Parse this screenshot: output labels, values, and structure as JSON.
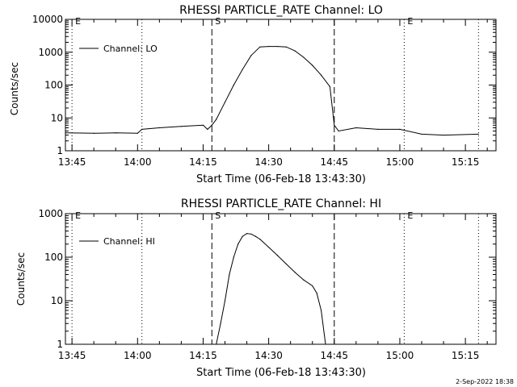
{
  "footer": {
    "stamp": "2-Sep-2022 18:38"
  },
  "chart_data": [
    {
      "type": "line",
      "title": "RHESSI PARTICLE_RATE Channel: LO",
      "xlabel": "Start Time (06-Feb-18 13:43:30)",
      "ylabel": "Counts/sec",
      "yscale": "log",
      "ylim": [
        1,
        10000
      ],
      "xlim": [
        "13:43:30",
        "15:22:00"
      ],
      "xticks": [
        "13:45",
        "14:00",
        "14:15",
        "14:30",
        "14:45",
        "15:00",
        "15:15"
      ],
      "yticks": [
        "1",
        "10",
        "100",
        "1000",
        "10000"
      ],
      "legend": {
        "position": "top-left",
        "entries": [
          "Channel: LO"
        ]
      },
      "markers": [
        {
          "label": "E",
          "time": "13:45",
          "style": "dotted"
        },
        {
          "label": "",
          "time": "14:01",
          "style": "dotted"
        },
        {
          "label": "S",
          "time": "14:17",
          "style": "dashed"
        },
        {
          "label": "",
          "time": "14:45",
          "style": "dashed"
        },
        {
          "label": "E",
          "time": "15:01",
          "style": "dotted"
        },
        {
          "label": "",
          "time": "15:18",
          "style": "dotted"
        }
      ],
      "series": [
        {
          "name": "Channel: LO",
          "x": [
            "13:43:30",
            "13:50",
            "13:55",
            "14:00",
            "14:01",
            "14:05",
            "14:10",
            "14:15",
            "14:16",
            "14:17",
            "14:18",
            "14:20",
            "14:22",
            "14:24",
            "14:26",
            "14:28",
            "14:30",
            "14:32",
            "14:34",
            "14:36",
            "14:38",
            "14:40",
            "14:42",
            "14:44",
            "14:45",
            "14:46",
            "14:50",
            "14:55",
            "15:00",
            "15:05",
            "15:10",
            "15:18"
          ],
          "y": [
            3.5,
            3.4,
            3.5,
            3.4,
            4.5,
            5,
            5.5,
            6,
            4.5,
            6,
            9,
            30,
            100,
            300,
            800,
            1450,
            1500,
            1500,
            1450,
            1100,
            700,
            400,
            200,
            90,
            6,
            4,
            5,
            4.5,
            4.5,
            3.2,
            3,
            3.2
          ]
        }
      ]
    },
    {
      "type": "line",
      "title": "RHESSI PARTICLE_RATE Channel: HI",
      "xlabel": "Start Time (06-Feb-18 13:43:30)",
      "ylabel": "Counts/sec",
      "yscale": "log",
      "ylim": [
        1,
        1000
      ],
      "xlim": [
        "13:43:30",
        "15:22:00"
      ],
      "xticks": [
        "13:45",
        "14:00",
        "14:15",
        "14:30",
        "14:45",
        "15:00",
        "15:15"
      ],
      "yticks": [
        "1",
        "10",
        "100",
        "1000"
      ],
      "legend": {
        "position": "top-left",
        "entries": [
          "Channel: HI"
        ]
      },
      "markers": [
        {
          "label": "E",
          "time": "13:45",
          "style": "dotted"
        },
        {
          "label": "",
          "time": "14:01",
          "style": "dotted"
        },
        {
          "label": "S",
          "time": "14:17",
          "style": "dashed"
        },
        {
          "label": "",
          "time": "14:45",
          "style": "dashed"
        },
        {
          "label": "E",
          "time": "15:01",
          "style": "dotted"
        },
        {
          "label": "",
          "time": "15:18",
          "style": "dotted"
        }
      ],
      "series": [
        {
          "name": "Channel: HI",
          "x": [
            "14:18",
            "14:19",
            "14:20",
            "14:21",
            "14:22",
            "14:23",
            "14:24",
            "14:25",
            "14:26",
            "14:27",
            "14:28",
            "14:30",
            "14:32",
            "14:34",
            "14:36",
            "14:38",
            "14:40",
            "14:41",
            "14:42",
            "14:43"
          ],
          "y": [
            1,
            3,
            10,
            40,
            100,
            200,
            300,
            350,
            340,
            300,
            260,
            170,
            110,
            70,
            45,
            30,
            22,
            15,
            6,
            1
          ]
        }
      ]
    }
  ]
}
